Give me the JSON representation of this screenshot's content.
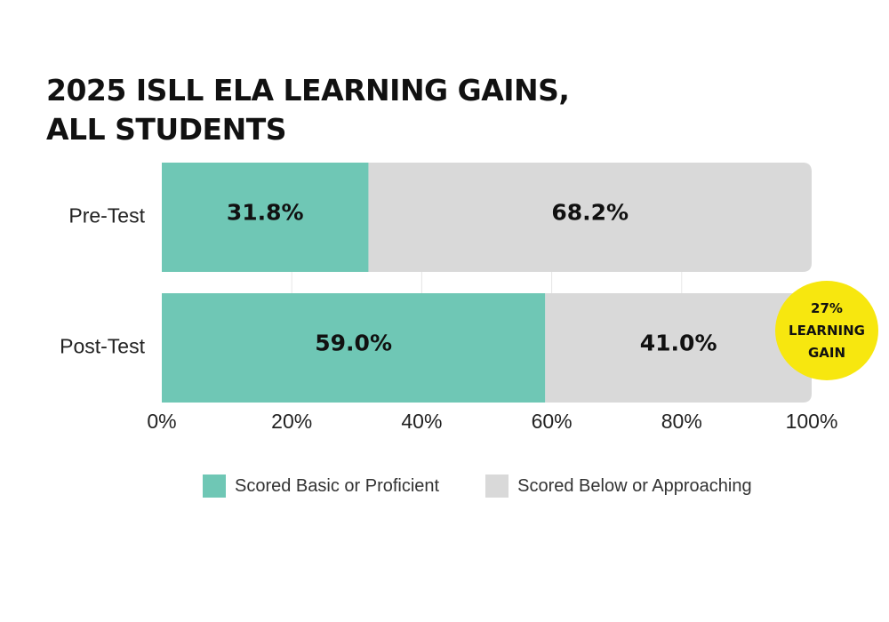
{
  "title_lines": [
    "2025 ISLL ELA LEARNING GAINS,",
    "ALL STUDENTS"
  ],
  "badge": {
    "lines": [
      "27%",
      "LEARNING",
      "GAIN"
    ],
    "color": "#f7e70f"
  },
  "legend": [
    {
      "label": "Scored Basic or Proficient",
      "color": "#6fc7b5"
    },
    {
      "label": "Scored Below or Approaching",
      "color": "#d9d9d9"
    }
  ],
  "chart_data": {
    "type": "bar",
    "orientation": "horizontal",
    "stacked": true,
    "title": "2025 ISLL ELA LEARNING GAINS, ALL STUDENTS",
    "categories": [
      "Pre-Test",
      "Post-Test"
    ],
    "series": [
      {
        "name": "Scored Basic or Proficient",
        "values": [
          31.8,
          59.0
        ],
        "labels": [
          "31.8%",
          "59.0%"
        ],
        "color": "#6fc7b5"
      },
      {
        "name": "Scored Below or Approaching",
        "values": [
          68.2,
          41.0
        ],
        "labels": [
          "68.2%",
          "41.0%"
        ],
        "color": "#d9d9d9"
      }
    ],
    "xlim": [
      0,
      100
    ],
    "xticks": [
      "0%",
      "20%",
      "40%",
      "60%",
      "80%",
      "100%"
    ],
    "grid": true,
    "legend_position": "bottom"
  }
}
